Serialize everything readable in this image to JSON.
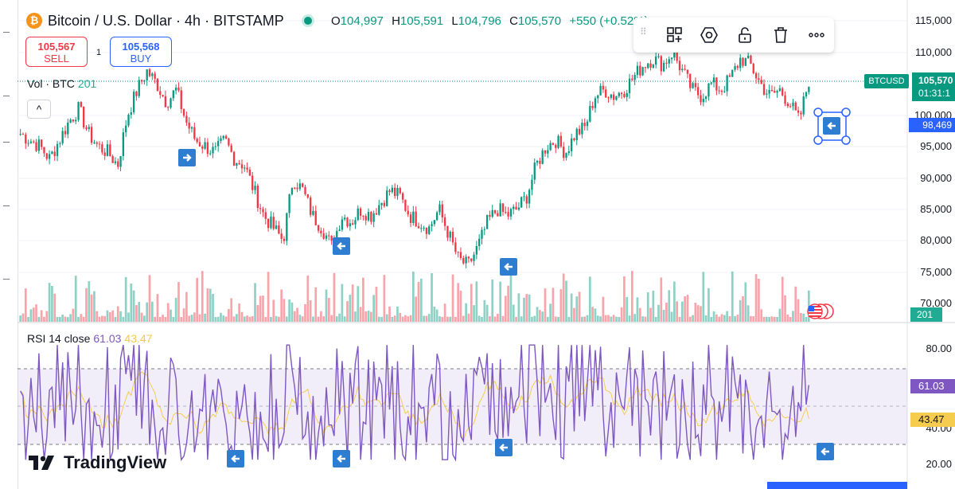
{
  "symbol": {
    "title": "Bitcoin / U.S. Dollar · 4h · BITSTAMP",
    "logo_glyph": "₿"
  },
  "ohlc": {
    "o_label": "O",
    "o": "104,997",
    "h_label": "H",
    "h": "105,591",
    "l_label": "L",
    "l": "104,796",
    "c_label": "C",
    "c": "105,570",
    "change": "+550 (+0.52%)"
  },
  "trade": {
    "sell_price": "105,567",
    "sell_label": "SELL",
    "spread": "1",
    "buy_price": "105,568",
    "buy_label": "BUY"
  },
  "volume": {
    "label": "Vol · BTC",
    "value": "201",
    "collapse_glyph": "^"
  },
  "toolbar": {
    "icons": [
      "drag-handle-icon",
      "object-tree-icon",
      "settings-icon",
      "unlock-icon",
      "delete-icon",
      "more-icon"
    ]
  },
  "price_axis": {
    "labels": [
      "115,000",
      "110,000",
      "105,570",
      "100,000",
      "95,000",
      "90,000",
      "85,000",
      "80,000",
      "75,000",
      "70,000"
    ],
    "current_price": "105,570",
    "countdown": "01:31:1",
    "symbol_tag": "BTCUSD",
    "alert_price": "98,469",
    "volume_tag": "201"
  },
  "rsi": {
    "label": "RSI 14 close",
    "value1": "61.03",
    "value2": "43.47",
    "axis_labels": [
      "80.00",
      "40.00",
      "20.00"
    ],
    "tag1": "61.03",
    "tag2": "43.47"
  },
  "branding": {
    "name": "TradingView"
  },
  "colors": {
    "up": "#089981",
    "down": "#f23645",
    "rsi_line": "#7e57c2",
    "rsi_ma": "#f5cc4e",
    "accent_blue": "#2962ff",
    "arrow_marker": "#2f7dd1"
  },
  "chart_data": {
    "type": "candlestick",
    "timeframe": "4h",
    "yrange": [
      70000,
      115000
    ],
    "approx_close_path": [
      97000,
      96000,
      95000,
      93000,
      96000,
      99000,
      101000,
      97000,
      95000,
      94000,
      92000,
      100000,
      104000,
      107000,
      105000,
      102000,
      104000,
      99000,
      96000,
      95000,
      94000,
      96000,
      93000,
      92000,
      88000,
      84000,
      82000,
      80000,
      90000,
      88000,
      84000,
      82000,
      79000,
      84000,
      83000,
      85000,
      84000,
      86000,
      88000,
      87000,
      84000,
      83000,
      82000,
      85000,
      81000,
      77000,
      76000,
      79000,
      83000,
      85000,
      84000,
      85000,
      87000,
      92000,
      95000,
      96000,
      94000,
      97000,
      98000,
      103000,
      104000,
      103000,
      104000,
      106000,
      108000,
      109000,
      108000,
      110000,
      107000,
      104000,
      103000,
      105000,
      104000,
      106000,
      109000,
      108000,
      105000,
      103000,
      104000,
      102000,
      99000,
      105570
    ]
  }
}
